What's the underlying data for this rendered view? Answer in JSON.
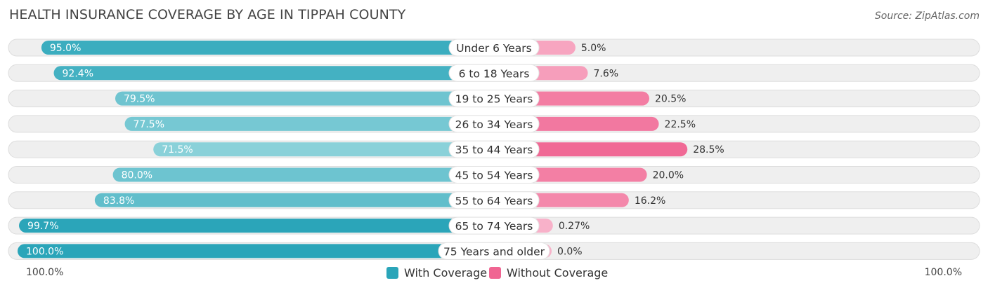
{
  "header": {
    "title": "HEALTH INSURANCE COVERAGE BY AGE IN TIPPAH COUNTY",
    "source": "Source: ZipAtlas.com"
  },
  "legend": {
    "with_label": "With Coverage",
    "without_label": "Without Coverage"
  },
  "axis": {
    "left_label": "100.0%",
    "right_label": "100.0%"
  },
  "colors": {
    "with_strong": "#2aa5b9",
    "with_light": "#8fd3db",
    "without_strong": "#f06592",
    "without_light": "#f8b2c9",
    "track": "#efefef",
    "track_border": "#dddddd"
  },
  "chart_data": {
    "type": "bar",
    "orientation": "horizontal-diverging",
    "title": "HEALTH INSURANCE COVERAGE BY AGE IN TIPPAH COUNTY",
    "categories": [
      "Under 6 Years",
      "6 to 18 Years",
      "19 to 25 Years",
      "26 to 34 Years",
      "35 to 44 Years",
      "45 to 54 Years",
      "55 to 64 Years",
      "65 to 74 Years",
      "75 Years and older"
    ],
    "series": [
      {
        "name": "With Coverage",
        "values": [
          95.0,
          92.4,
          79.5,
          77.5,
          71.5,
          80.0,
          83.8,
          99.7,
          100.0
        ],
        "labels": [
          "95.0%",
          "92.4%",
          "79.5%",
          "77.5%",
          "71.5%",
          "80.0%",
          "83.8%",
          "99.7%",
          "100.0%"
        ]
      },
      {
        "name": "Without Coverage",
        "values": [
          5.0,
          7.6,
          20.5,
          22.5,
          28.5,
          20.0,
          16.2,
          0.27,
          0.0
        ],
        "labels": [
          "5.0%",
          "7.6%",
          "20.5%",
          "22.5%",
          "28.5%",
          "20.0%",
          "16.2%",
          "0.27%",
          "0.0%"
        ]
      }
    ],
    "xlim": [
      -100,
      100
    ],
    "legend_position": "bottom-center"
  }
}
